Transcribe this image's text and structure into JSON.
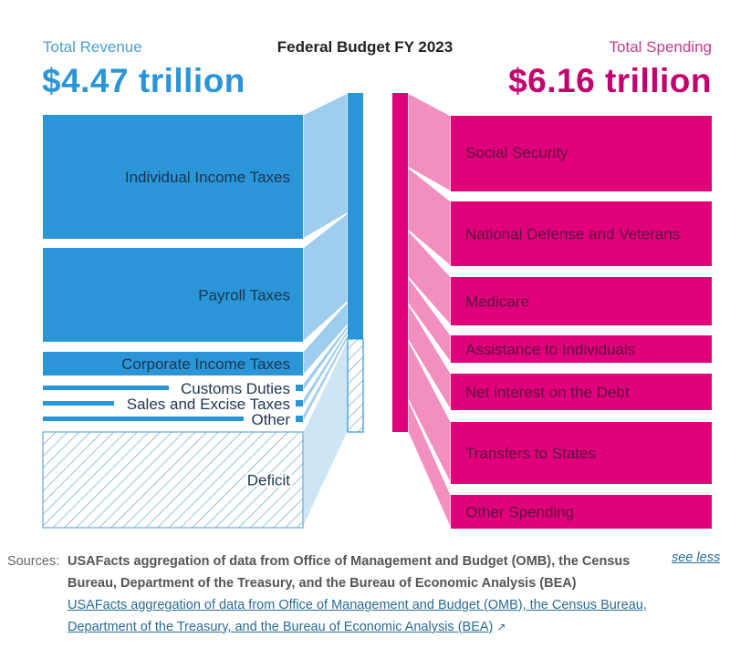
{
  "header": {
    "title": "Federal Budget FY 2023",
    "revenue_label": "Total Revenue",
    "revenue_value": "$4.47 trillion",
    "spending_label": "Total Spending",
    "spending_value": "$6.16 trillion"
  },
  "colors": {
    "revenue": "#2a96d8",
    "revenue_light": "#9fcdee",
    "revenue_lighter": "#cde6f6",
    "spending": "#e0007a",
    "spending_light": "#f28fbf",
    "label_dark": "#1e3550",
    "label_pink_dark": "#5a1040"
  },
  "chart_data": {
    "type": "sankey",
    "title": "Federal Budget FY 2023",
    "units": "trillion USD",
    "revenue_total": 4.47,
    "spending_total": 6.16,
    "revenue": [
      {
        "name": "Individual Income Taxes",
        "value": 2.18
      },
      {
        "name": "Payroll Taxes",
        "value": 1.61
      },
      {
        "name": "Corporate Income Taxes",
        "value": 0.42
      },
      {
        "name": "Customs Duties",
        "value": 0.08
      },
      {
        "name": "Sales and Excise Taxes",
        "value": 0.08
      },
      {
        "name": "Other",
        "value": 0.1
      },
      {
        "name": "Deficit",
        "value": 1.69,
        "hatched": true
      }
    ],
    "spending": [
      {
        "name": "Social Security",
        "value": 1.35
      },
      {
        "name": "National Defense and Veterans",
        "value": 1.14
      },
      {
        "name": "Medicare",
        "value": 0.85
      },
      {
        "name": "Assistance to Individuals",
        "value": 0.48
      },
      {
        "name": "Net interest on the Debt",
        "value": 0.66
      },
      {
        "name": "Transfers to States",
        "value": 1.08
      },
      {
        "name": "Other Spending",
        "value": 0.6
      }
    ]
  },
  "sources": {
    "label": "Sources:",
    "text": "USAFacts aggregation of data from Office of Management and Budget (OMB), the Census Bureau, Department of the Treasury, and the Bureau of Economic Analysis (BEA)",
    "link_text": "USAFacts aggregation of data from Office of Management and Budget (OMB), the Census Bureau, Department of the Treasury, and the Bureau of Economic Analysis (BEA)",
    "toggle": "see less",
    "external_icon": "↗"
  }
}
